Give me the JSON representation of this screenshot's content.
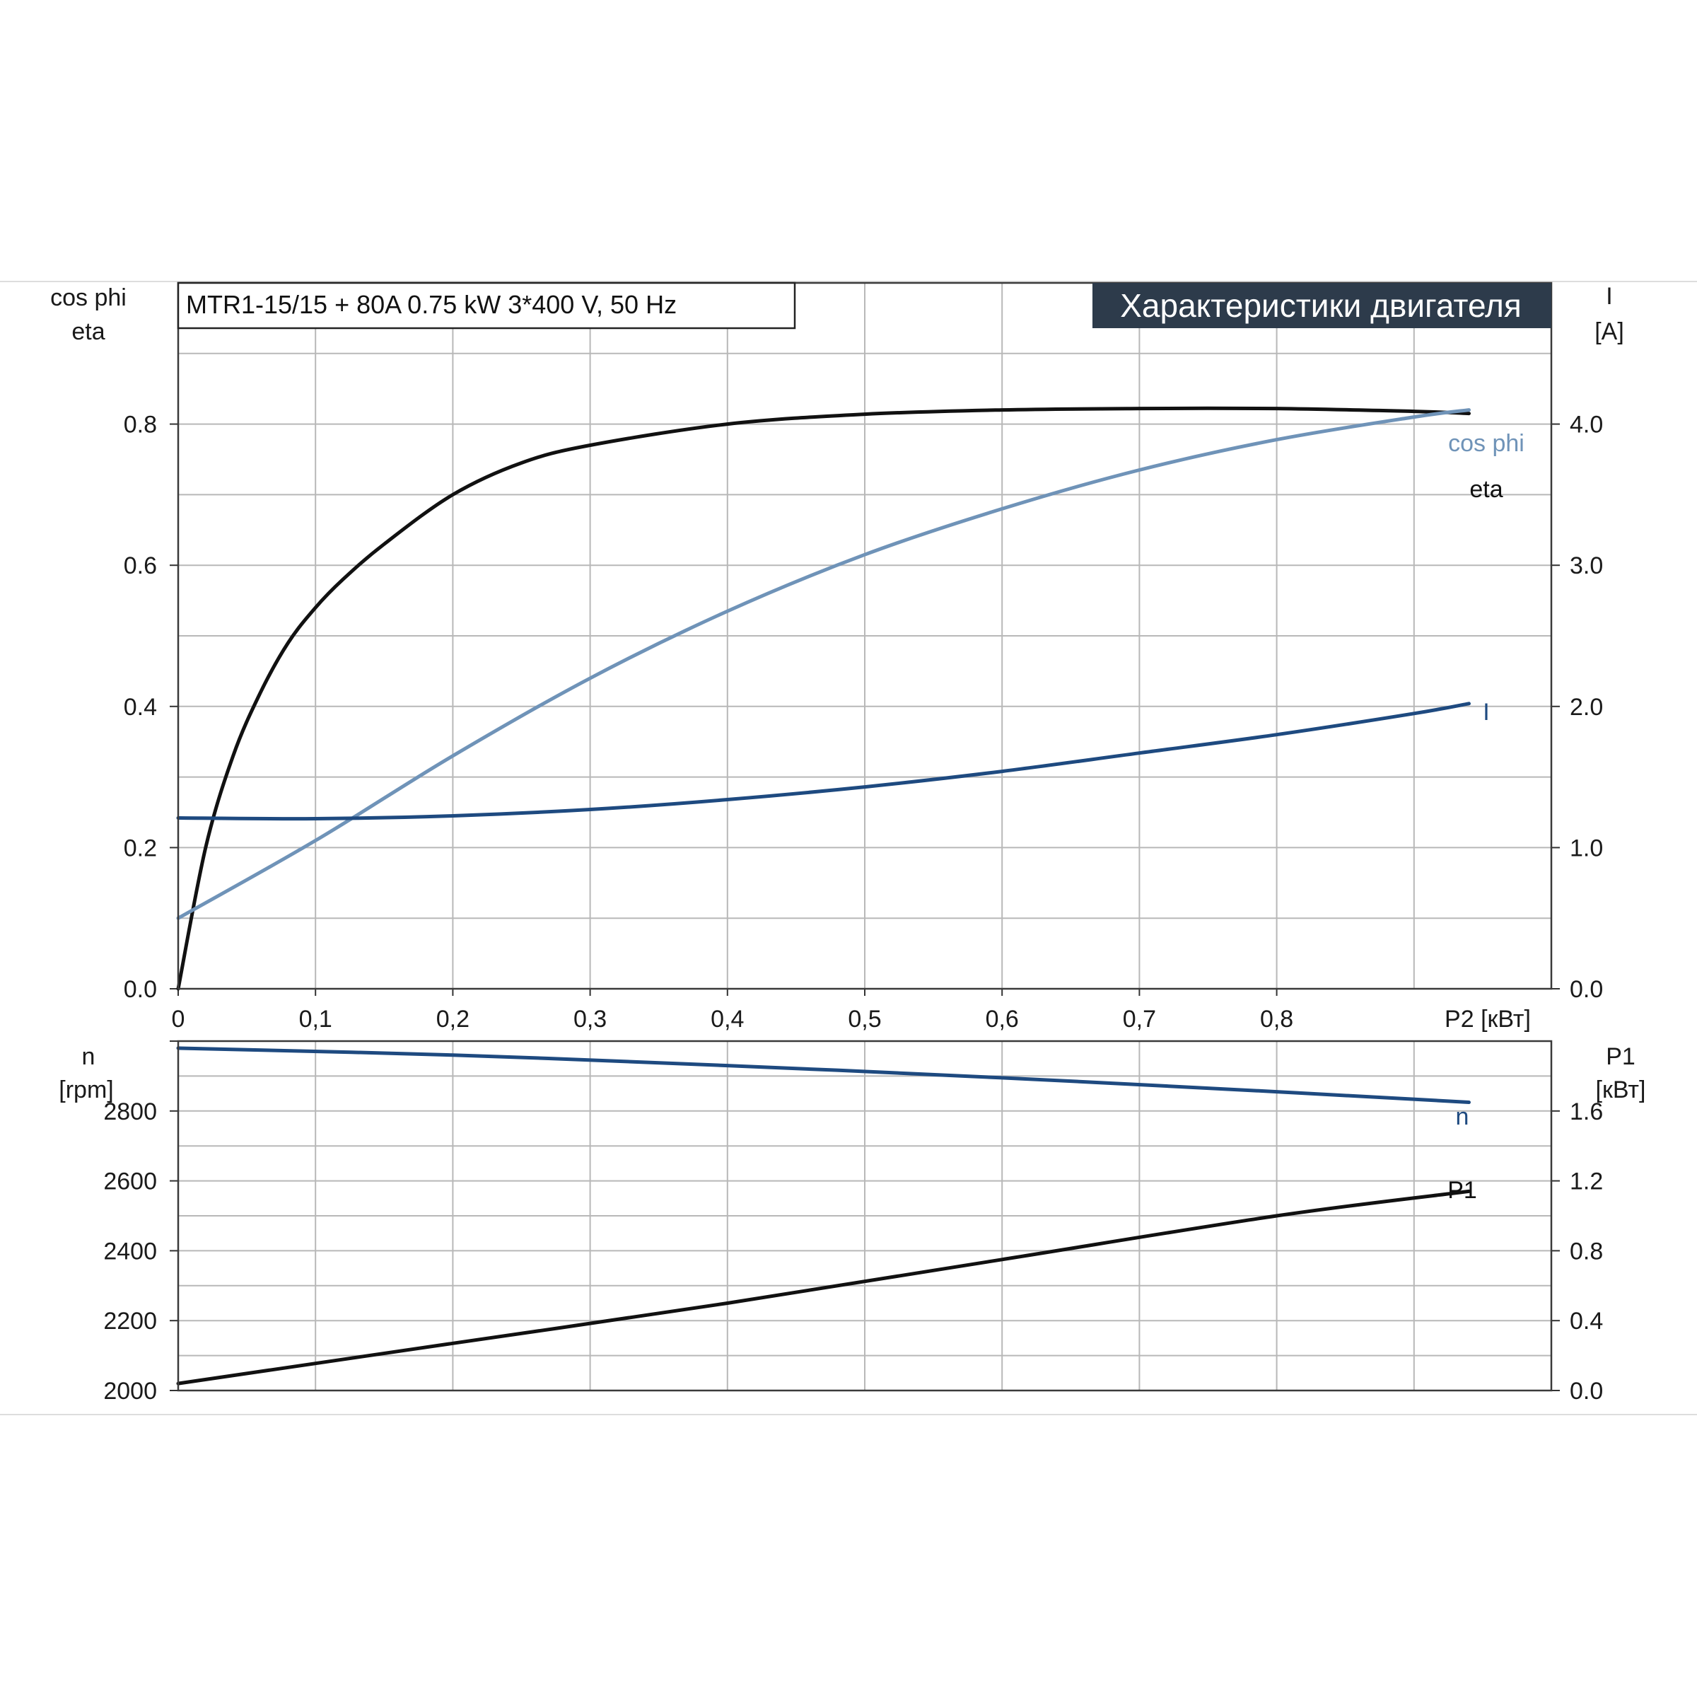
{
  "title": "MTR1-15/15 + 80A   0.75 kW   3*400 V, 50 Hz",
  "banner": "Характеристики двигателя",
  "colors": {
    "eta": "#111111",
    "cos_phi": "#6f93b8",
    "current": "#1e4a80",
    "speed": "#1e4a80",
    "p1": "#111111",
    "banner_bg": "#2d3b4b"
  },
  "chart_data": [
    {
      "type": "line",
      "left_axis_labels": [
        "cos phi",
        "eta"
      ],
      "right_axis_labels": [
        "I",
        "[A]"
      ],
      "xlabel": "P2 [кВт]",
      "x_ticks": [
        "0",
        "0,1",
        "0,2",
        "0,3",
        "0,4",
        "0,5",
        "0,6",
        "0,7",
        "0,8"
      ],
      "y_left_ticks": [
        "0.0",
        "0.2",
        "0.4",
        "0.6",
        "0.8"
      ],
      "y_right_ticks": [
        "0.0",
        "1.0",
        "2.0",
        "3.0",
        "4.0"
      ],
      "xlim": [
        0,
        1.0
      ],
      "ylim_left": [
        0,
        1.0
      ],
      "ylim_right": [
        0,
        5.0
      ],
      "grid": true,
      "series": [
        {
          "name": "eta",
          "axis": "left",
          "x": [
            0.0,
            0.02,
            0.04,
            0.06,
            0.08,
            0.1,
            0.12,
            0.15,
            0.2,
            0.25,
            0.3,
            0.4,
            0.5,
            0.6,
            0.7,
            0.8,
            0.9,
            0.94
          ],
          "y": [
            0.0,
            0.2,
            0.33,
            0.42,
            0.49,
            0.54,
            0.58,
            0.63,
            0.7,
            0.745,
            0.77,
            0.8,
            0.814,
            0.82,
            0.822,
            0.822,
            0.818,
            0.815
          ]
        },
        {
          "name": "cos phi",
          "axis": "left",
          "x": [
            0.0,
            0.1,
            0.2,
            0.3,
            0.4,
            0.5,
            0.6,
            0.7,
            0.8,
            0.9,
            0.94
          ],
          "y": [
            0.1,
            0.21,
            0.33,
            0.44,
            0.535,
            0.615,
            0.68,
            0.735,
            0.778,
            0.81,
            0.82
          ]
        },
        {
          "name": "I",
          "axis": "right",
          "x": [
            0.0,
            0.1,
            0.2,
            0.3,
            0.4,
            0.5,
            0.6,
            0.7,
            0.8,
            0.9,
            0.94
          ],
          "y": [
            1.21,
            1.205,
            1.225,
            1.27,
            1.34,
            1.43,
            1.54,
            1.67,
            1.8,
            1.95,
            2.02
          ]
        }
      ]
    },
    {
      "type": "line",
      "left_axis_labels": [
        "n",
        "[rpm]"
      ],
      "right_axis_labels": [
        "P1",
        "[кВт]"
      ],
      "y_left_ticks": [
        "2000",
        "2200",
        "2400",
        "2600",
        "2800"
      ],
      "y_right_ticks": [
        "0.0",
        "0.4",
        "0.8",
        "1.2",
        "1.6"
      ],
      "xlim": [
        0,
        1.0
      ],
      "ylim_left": [
        2000,
        3000
      ],
      "ylim_right": [
        0,
        2.0
      ],
      "grid": true,
      "series": [
        {
          "name": "n",
          "axis": "left",
          "x": [
            0.0,
            0.2,
            0.4,
            0.6,
            0.8,
            0.94
          ],
          "y": [
            2980,
            2960,
            2930,
            2895,
            2855,
            2825
          ]
        },
        {
          "name": "P1",
          "axis": "right",
          "x": [
            0.0,
            0.2,
            0.4,
            0.6,
            0.8,
            0.94
          ],
          "y": [
            0.04,
            0.27,
            0.5,
            0.75,
            1.0,
            1.14
          ]
        }
      ]
    }
  ]
}
